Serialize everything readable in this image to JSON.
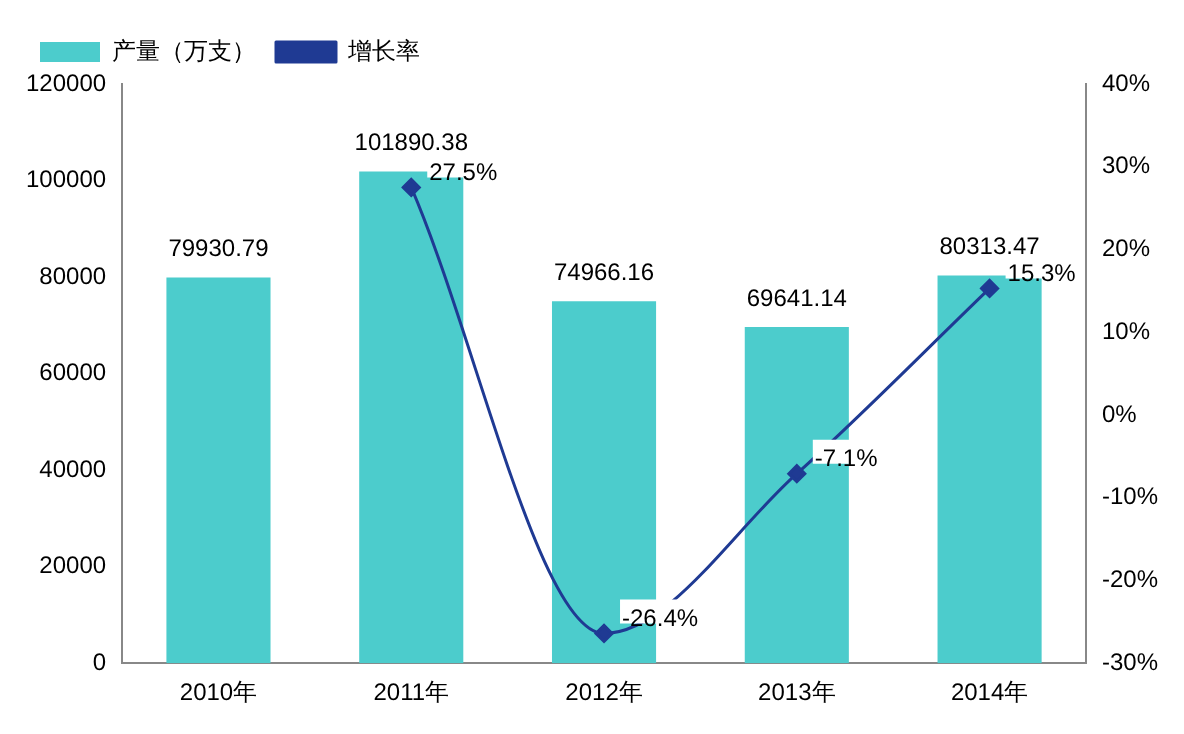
{
  "chart_data": {
    "type": "bar",
    "categories": [
      "2010年",
      "2011年",
      "2012年",
      "2013年",
      "2014年"
    ],
    "series": [
      {
        "name": "产量（万支）",
        "color": "#4ccccc",
        "values": [
          79930.79,
          101890.38,
          74966.16,
          69641.14,
          80313.47
        ],
        "value_labels": [
          "79930.79",
          "101890.38",
          "74966.16",
          "69641.14",
          "80313.47"
        ]
      },
      {
        "name": "增长率",
        "type": "line",
        "axis": "y2",
        "color": "#1f3a93",
        "values": [
          null,
          27.5,
          -26.4,
          -7.1,
          15.3
        ],
        "value_labels": [
          null,
          "27.5%",
          "-26.4%",
          "-7.1%",
          "15.3%"
        ]
      }
    ],
    "ylim": [
      0,
      120000
    ],
    "yticks": [
      0,
      20000,
      40000,
      60000,
      80000,
      100000,
      120000
    ],
    "y2lim": [
      -30,
      40
    ],
    "y2ticks": [
      {
        "value": -30,
        "label": "-30%"
      },
      {
        "value": -20,
        "label": "-20%"
      },
      {
        "value": -10,
        "label": "-10%"
      },
      {
        "value": 0,
        "label": "0%"
      },
      {
        "value": 10,
        "label": "10%"
      },
      {
        "value": 20,
        "label": "20%"
      },
      {
        "value": 30,
        "label": "30%"
      },
      {
        "value": 40,
        "label": "40%"
      }
    ],
    "grid": false,
    "legend": "top left",
    "marker": "diamond",
    "line_style": "solid"
  }
}
